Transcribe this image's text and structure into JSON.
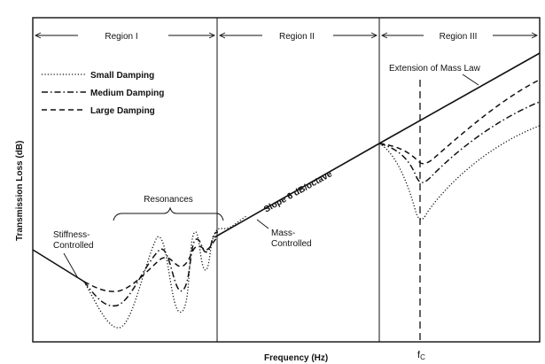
{
  "axes": {
    "xlabel": "Frequency (Hz)",
    "ylabel": "Transmission Loss (dB)",
    "fc_label": "f",
    "fc_sub": "C"
  },
  "regions": [
    "Region I",
    "Region II",
    "Region III"
  ],
  "legend": [
    {
      "label": "Small Damping",
      "dash": "dotted"
    },
    {
      "label": "Medium Damping",
      "dash": "dash-dot"
    },
    {
      "label": "Large Damping",
      "dash": "dashed"
    }
  ],
  "annotations": {
    "stiffness_line1": "Stiffness-",
    "stiffness_line2": "Controlled",
    "resonances": "Resonances",
    "slope": "Slope 6 dB/octave",
    "mass_line1": "Mass-",
    "mass_line2": "Controlled",
    "extension": "Extension of Mass Law"
  },
  "colors": {
    "ink": "#111111",
    "background": "#ffffff"
  }
}
